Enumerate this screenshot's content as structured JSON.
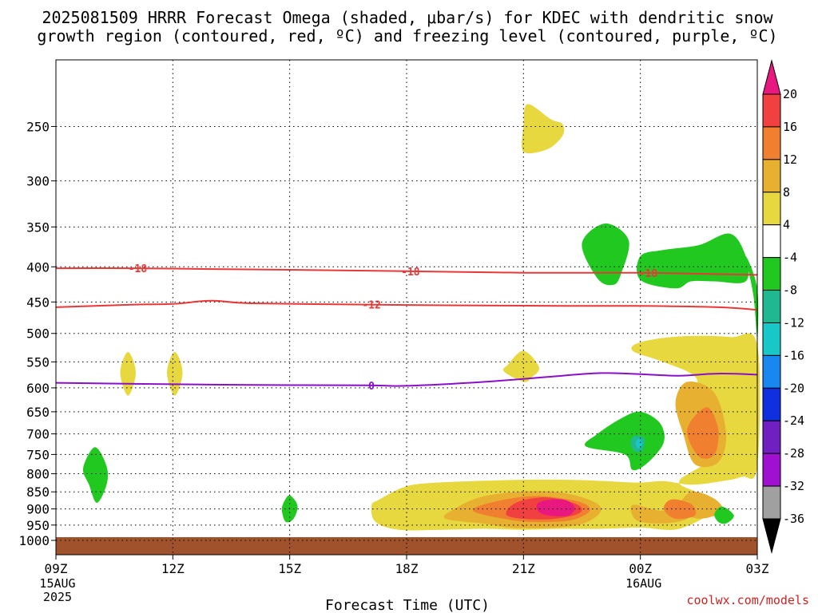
{
  "chart_data": {
    "type": "heatmap",
    "title_lines": [
      "2025081509 HRRR Forecast Omega (shaded, μbar/s) for KDEC with dendritic snow",
      "growth region (contoured, red, ºC) and freezing level (contoured, purple, ºC)"
    ],
    "xlabel": "Forecast Time (UTC)",
    "ylabel": "",
    "x_ticks": [
      "09Z",
      "12Z",
      "15Z",
      "18Z",
      "21Z",
      "00Z",
      "03Z"
    ],
    "x_hours": [
      0,
      3,
      6,
      9,
      12,
      15,
      18
    ],
    "x_sublabels": [
      {
        "hour": 0,
        "lines": [
          "15AUG",
          "2025"
        ]
      },
      {
        "hour": 15,
        "lines": [
          "16AUG"
        ]
      }
    ],
    "xlim": [
      0,
      18
    ],
    "y_ticks": [
      250,
      300,
      350,
      400,
      450,
      500,
      550,
      600,
      650,
      700,
      750,
      800,
      850,
      900,
      950,
      1000
    ],
    "ylim": [
      200,
      1000
    ],
    "y_scale": "log-pressure",
    "grid": true,
    "colorbar": {
      "labels": [
        "20",
        "16",
        "12",
        "8",
        "4",
        "-4",
        "-8",
        "-12",
        "-16",
        "-20",
        "-24",
        "-28",
        "-32",
        "-36"
      ],
      "colors": [
        "#e81880",
        "#f04040",
        "#f08030",
        "#e8b030",
        "#e8d840",
        "#ffffff",
        "#20c820",
        "#20b890",
        "#18c8c8",
        "#1888f0",
        "#1030e0",
        "#7020c0",
        "#a010d0",
        "#a0a0a0",
        "#000000"
      ]
    },
    "contours": [
      {
        "name": "-18",
        "color": "#e83838",
        "label_hours": [
          2.1,
          9.1,
          15.2
        ],
        "points": [
          [
            0,
            402
          ],
          [
            2,
            402
          ],
          [
            4,
            403
          ],
          [
            6,
            404
          ],
          [
            9,
            406
          ],
          [
            12,
            408
          ],
          [
            15,
            408
          ],
          [
            17,
            410
          ],
          [
            18,
            411
          ]
        ]
      },
      {
        "name": "-12",
        "color": "#e83838",
        "label_hours": [
          8.1
        ],
        "points": [
          [
            0,
            458
          ],
          [
            2,
            454
          ],
          [
            3,
            453
          ],
          [
            4,
            448
          ],
          [
            5,
            452
          ],
          [
            8,
            454
          ],
          [
            10,
            455
          ],
          [
            13,
            456
          ],
          [
            15,
            456
          ],
          [
            17,
            458
          ],
          [
            18,
            462
          ]
        ]
      },
      {
        "name": "0",
        "color": "#8a10c8",
        "label_hours": [
          8.1
        ],
        "points": [
          [
            0,
            590
          ],
          [
            2,
            592
          ],
          [
            5,
            594
          ],
          [
            8,
            595
          ],
          [
            9,
            596
          ],
          [
            11,
            588
          ],
          [
            13,
            576
          ],
          [
            14,
            571
          ],
          [
            15,
            573
          ],
          [
            16,
            576
          ],
          [
            17,
            572
          ],
          [
            18,
            574
          ]
        ]
      }
    ],
    "omega_regions": [
      {
        "level": "4 to 8",
        "color": "#e8d840",
        "points": [
          [
            12.1,
            232
          ],
          [
            12.7,
            244
          ],
          [
            13.0,
            248
          ],
          [
            13.0,
            258
          ],
          [
            12.6,
            270
          ],
          [
            12.0,
            272
          ],
          [
            12.0,
            250
          ]
        ]
      },
      {
        "level": "4 to 8",
        "color": "#e8d840",
        "points": [
          [
            1.85,
            532
          ],
          [
            2.05,
            570
          ],
          [
            1.85,
            616
          ],
          [
            1.65,
            570
          ]
        ]
      },
      {
        "level": "4 to 8",
        "color": "#e8d840",
        "points": [
          [
            3.05,
            532
          ],
          [
            3.25,
            570
          ],
          [
            3.05,
            616
          ],
          [
            2.85,
            570
          ]
        ]
      },
      {
        "level": "4 to 8",
        "color": "#e8d840",
        "points": [
          [
            12.0,
            530
          ],
          [
            12.4,
            560
          ],
          [
            12.2,
            580
          ],
          [
            12.0,
            588
          ],
          [
            11.5,
            568
          ],
          [
            11.6,
            555
          ]
        ]
      },
      {
        "level": "4 to 8",
        "color": "#e8d840",
        "points": [
          [
            15.0,
            515
          ],
          [
            16.0,
            505
          ],
          [
            17.3,
            506
          ],
          [
            18.0,
            520
          ],
          [
            18.0,
            780
          ],
          [
            17.6,
            808
          ],
          [
            17.1,
            820
          ],
          [
            16.3,
            830
          ],
          [
            15.6,
            820
          ],
          [
            15.0,
            824
          ],
          [
            14.3,
            821
          ],
          [
            13.4,
            817
          ],
          [
            12.3,
            816
          ],
          [
            11.0,
            819
          ],
          [
            9.5,
            826
          ],
          [
            8.9,
            838
          ],
          [
            8.3,
            872
          ],
          [
            8.1,
            890
          ],
          [
            8.2,
            940
          ],
          [
            8.8,
            965
          ],
          [
            9.9,
            965
          ],
          [
            11.0,
            962
          ],
          [
            12.0,
            965
          ],
          [
            13.0,
            962
          ],
          [
            14.0,
            962
          ],
          [
            15.0,
            958
          ],
          [
            16.0,
            962
          ],
          [
            16.9,
            900
          ],
          [
            16.5,
            855
          ],
          [
            16.0,
            820
          ],
          [
            16.8,
            760
          ],
          [
            16.6,
            700
          ],
          [
            16.5,
            600
          ],
          [
            16.3,
            572
          ],
          [
            15.5,
            548
          ],
          [
            14.8,
            530
          ]
        ]
      },
      {
        "level": "8 to 12",
        "color": "#e8b030",
        "points": [
          [
            16.2,
            588
          ],
          [
            16.9,
            610
          ],
          [
            17.2,
            700
          ],
          [
            17.0,
            770
          ],
          [
            16.4,
            775
          ],
          [
            16.1,
            700
          ],
          [
            15.9,
            630
          ]
        ]
      },
      {
        "level": "8 to 12",
        "color": "#e8b030",
        "points": [
          [
            11.0,
            862
          ],
          [
            12.4,
            848
          ],
          [
            13.4,
            862
          ],
          [
            14.0,
            900
          ],
          [
            13.4,
            950
          ],
          [
            11.9,
            960
          ],
          [
            11.0,
            946
          ],
          [
            10.0,
            930
          ],
          [
            10.2,
            902
          ]
        ]
      },
      {
        "level": "8 to 12",
        "color": "#e8b030",
        "points": [
          [
            14.8,
            888
          ],
          [
            15.5,
            905
          ],
          [
            16.1,
            900
          ],
          [
            16.2,
            930
          ],
          [
            15.6,
            945
          ],
          [
            14.9,
            935
          ]
        ]
      },
      {
        "level": "8 to 12",
        "color": "#e8b030",
        "points": [
          [
            16.3,
            850
          ],
          [
            16.9,
            870
          ],
          [
            17.1,
            908
          ],
          [
            16.5,
            930
          ],
          [
            16.0,
            900
          ]
        ]
      },
      {
        "level": "12 to 16",
        "color": "#f08030",
        "points": [
          [
            16.7,
            640
          ],
          [
            17.0,
            690
          ],
          [
            16.9,
            750
          ],
          [
            16.5,
            755
          ],
          [
            16.2,
            690
          ]
        ]
      },
      {
        "level": "12 to 16",
        "color": "#f08030",
        "points": [
          [
            11.2,
            880
          ],
          [
            12.3,
            862
          ],
          [
            13.4,
            878
          ],
          [
            13.7,
            905
          ],
          [
            13.2,
            935
          ],
          [
            12.2,
            940
          ],
          [
            11.4,
            928
          ],
          [
            10.7,
            905
          ]
        ]
      },
      {
        "level": "12 to 16",
        "color": "#f08030",
        "points": [
          [
            15.8,
            872
          ],
          [
            16.3,
            885
          ],
          [
            16.4,
            920
          ],
          [
            15.9,
            930
          ],
          [
            15.6,
            900
          ]
        ]
      },
      {
        "level": "16 to 20",
        "color": "#f04040",
        "points": [
          [
            11.8,
            882
          ],
          [
            12.6,
            866
          ],
          [
            13.4,
            888
          ],
          [
            13.4,
            915
          ],
          [
            12.6,
            932
          ],
          [
            11.6,
            922
          ]
        ]
      },
      {
        "level": ">20",
        "color": "#e81880",
        "points": [
          [
            12.4,
            880
          ],
          [
            13.0,
            872
          ],
          [
            13.3,
            892
          ],
          [
            13.2,
            918
          ],
          [
            12.8,
            922
          ],
          [
            12.4,
            910
          ]
        ]
      },
      {
        "level": "-4 to -8",
        "color": "#20c820",
        "points": [
          [
            1.0,
            732
          ],
          [
            1.3,
            780
          ],
          [
            1.3,
            830
          ],
          [
            1.05,
            882
          ],
          [
            0.85,
            830
          ],
          [
            0.7,
            785
          ]
        ]
      },
      {
        "level": "-4 to -8",
        "color": "#20c820",
        "points": [
          [
            6.0,
            860
          ],
          [
            6.2,
            890
          ],
          [
            6.1,
            930
          ],
          [
            5.9,
            940
          ],
          [
            5.8,
            905
          ],
          [
            5.85,
            880
          ]
        ]
      },
      {
        "level": "-4 to -8",
        "color": "#20c820",
        "points": [
          [
            14.1,
            346
          ],
          [
            14.7,
            366
          ],
          [
            14.5,
            410
          ],
          [
            14.3,
            425
          ],
          [
            13.9,
            416
          ],
          [
            13.5,
            370
          ]
        ]
      },
      {
        "level": "-4 to -8",
        "color": "#20c820",
        "points": [
          [
            15.0,
            386
          ],
          [
            15.6,
            378
          ],
          [
            16.5,
            372
          ],
          [
            17.3,
            358
          ],
          [
            17.7,
            386
          ],
          [
            17.7,
            420
          ],
          [
            16.9,
            420
          ],
          [
            16.3,
            420
          ],
          [
            15.9,
            430
          ],
          [
            15.0,
            418
          ]
        ]
      },
      {
        "level": "-4 to -8",
        "color": "#20c820",
        "points": [
          [
            17.7,
            386
          ],
          [
            18.0,
            430
          ],
          [
            18.0,
            510
          ],
          [
            17.9,
            440
          ]
        ]
      },
      {
        "level": "-4 to -8",
        "color": "#20c820",
        "points": [
          [
            15.0,
            650
          ],
          [
            15.5,
            675
          ],
          [
            15.6,
            720
          ],
          [
            15.2,
            770
          ],
          [
            14.8,
            790
          ],
          [
            14.6,
            750
          ],
          [
            13.6,
            730
          ],
          [
            13.9,
            700
          ],
          [
            14.5,
            665
          ]
        ]
      },
      {
        "level": "-4 to -8",
        "color": "#20c820",
        "points": [
          [
            17.1,
            893
          ],
          [
            17.4,
            920
          ],
          [
            17.2,
            945
          ],
          [
            17.0,
            940
          ],
          [
            16.9,
            915
          ]
        ]
      },
      {
        "level": "-8 to -12",
        "color": "#20b890",
        "points": [
          [
            14.85,
            705
          ],
          [
            15.1,
            710
          ],
          [
            15.05,
            740
          ],
          [
            14.85,
            742
          ],
          [
            14.75,
            720
          ]
        ]
      },
      {
        "level": "-12 to -16",
        "color": "#18c8c8",
        "points": [
          [
            14.95,
            712
          ],
          [
            15.05,
            722
          ],
          [
            14.95,
            735
          ],
          [
            14.88,
            722
          ]
        ]
      }
    ]
  },
  "credit": "coolwx.com/models"
}
